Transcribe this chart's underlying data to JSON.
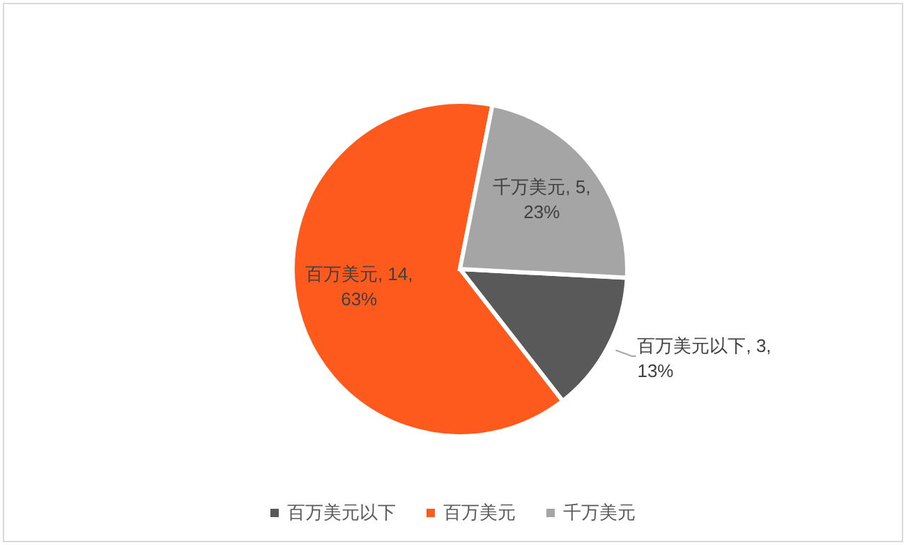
{
  "chart_data": {
    "type": "pie",
    "categories": [
      "百万美元以下",
      "百万美元",
      "千万美元"
    ],
    "values": [
      3,
      14,
      5
    ],
    "colors": [
      "#595959",
      "#ff5a1e",
      "#a5a5a5"
    ],
    "value_labels": [
      "百万美元以下, 3, 13%",
      "百万美元, 14, 63%",
      "千万美元, 5, 23%"
    ],
    "legend": "bottom"
  }
}
